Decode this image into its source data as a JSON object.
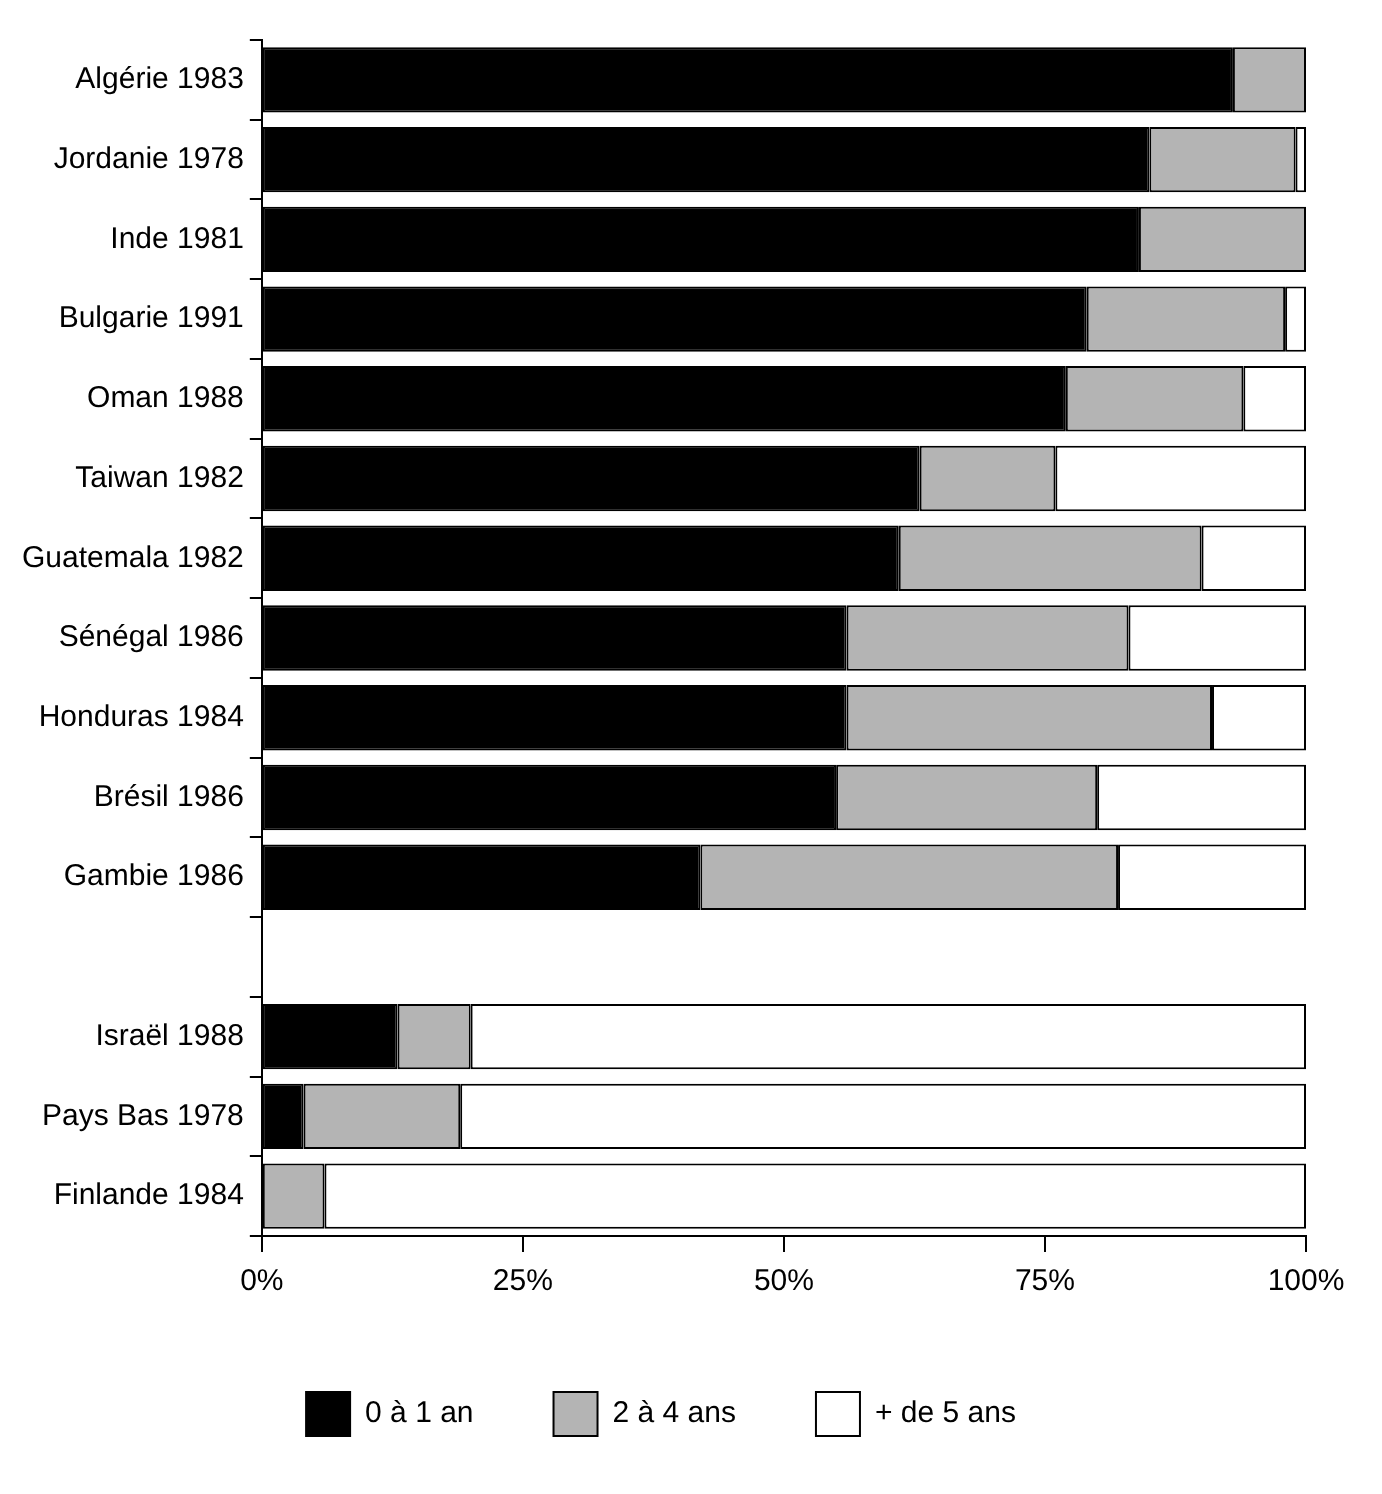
{
  "chart_data": {
    "type": "bar",
    "orientation": "horizontal",
    "stacked": true,
    "categories": [
      "Algérie 1983",
      "Jordanie 1978",
      "Inde 1981",
      "Bulgarie 1991",
      "Oman 1988",
      "Taiwan 1982",
      "Guatemala 1982",
      "Sénégal 1986",
      "Honduras 1984",
      "Brésil 1986",
      "Gambie 1986",
      null,
      "Israël 1988",
      "Pays Bas 1978",
      "Finlande 1984"
    ],
    "series": [
      {
        "name": "0 à 1 an",
        "color": "#000000",
        "values": [
          93,
          85,
          84,
          79,
          77,
          63,
          61,
          56,
          56,
          55,
          42,
          null,
          13,
          4,
          0
        ]
      },
      {
        "name": "2 à 4 ans",
        "color": "#b4b4b4",
        "values": [
          7,
          14,
          16,
          19,
          17,
          13,
          29,
          27,
          35,
          25,
          40,
          null,
          7,
          15,
          6
        ]
      },
      {
        "name": "+ de 5 ans",
        "color": "#ffffff",
        "values": [
          0,
          1,
          0,
          2,
          6,
          24,
          10,
          17,
          9,
          20,
          18,
          null,
          80,
          81,
          94
        ]
      }
    ],
    "xlim": [
      0,
      100
    ],
    "xticks": [
      {
        "value": 0,
        "label": "0%"
      },
      {
        "value": 25,
        "label": "25%"
      },
      {
        "value": 50,
        "label": "50%"
      },
      {
        "value": 75,
        "label": "75%"
      },
      {
        "value": 100,
        "label": "100%"
      }
    ],
    "grid": false,
    "legend": "bottom"
  }
}
